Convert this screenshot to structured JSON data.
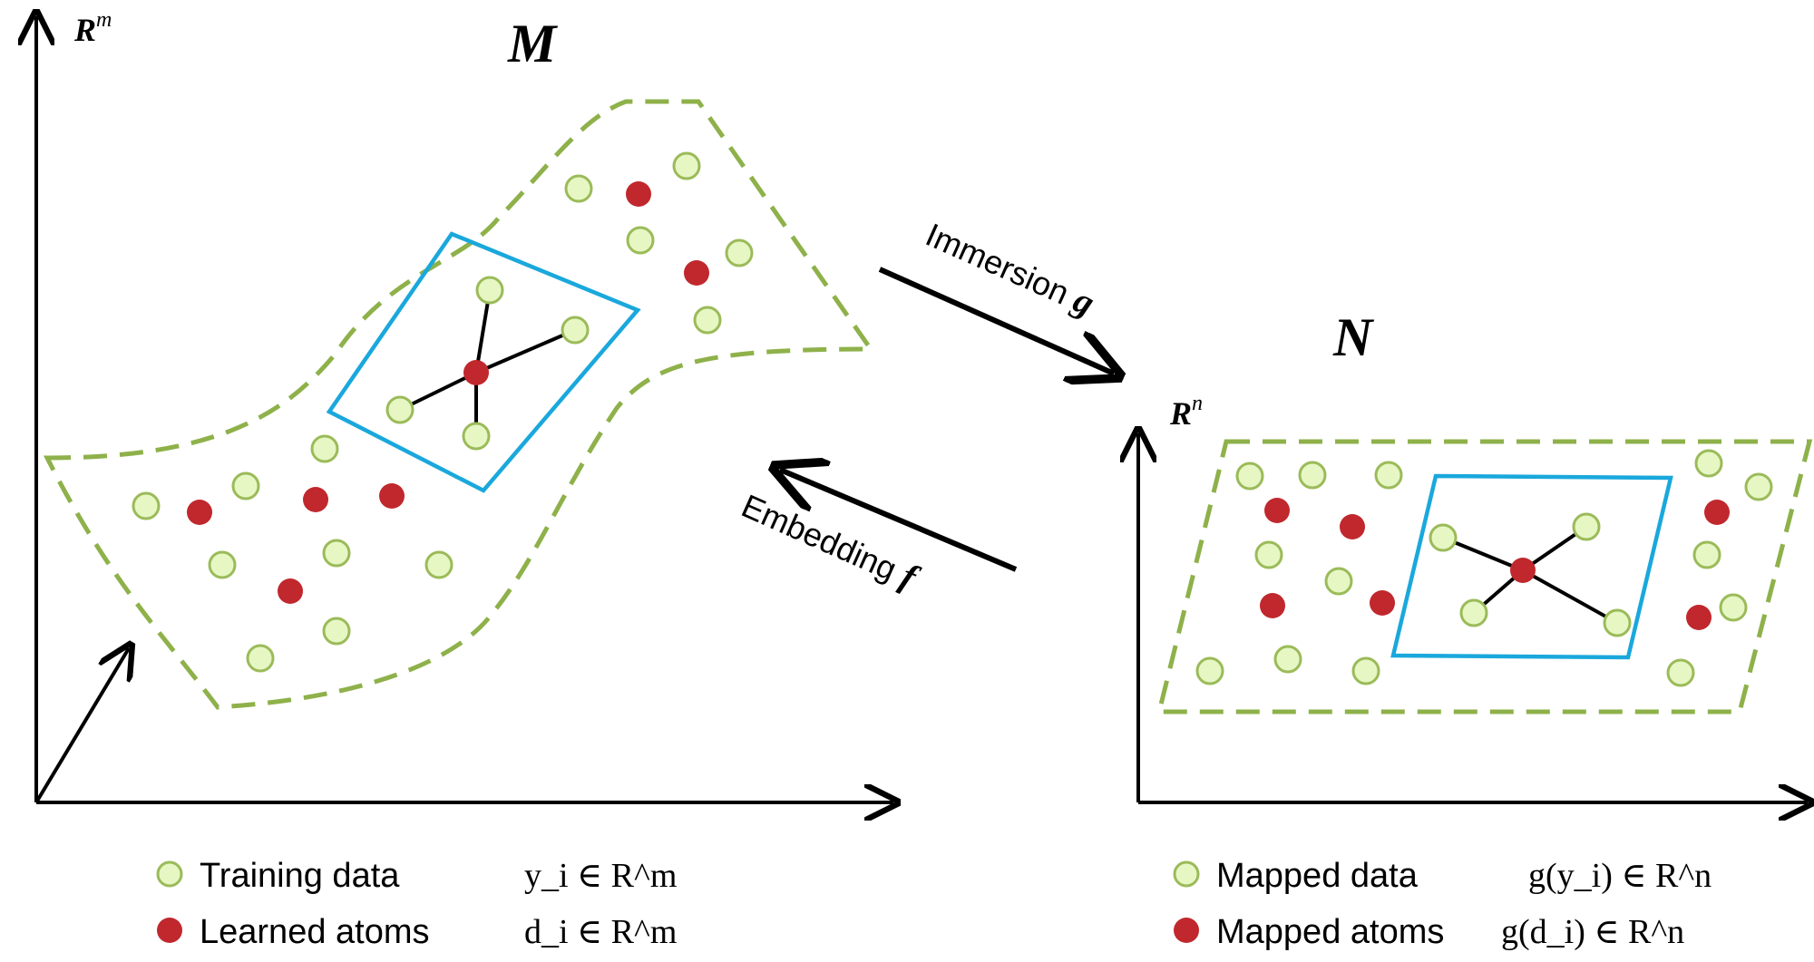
{
  "left_space": {
    "axis_label_base": "R",
    "axis_label_exp": "m",
    "manifold_label": "M"
  },
  "right_space": {
    "axis_label_base": "R",
    "axis_label_exp": "n",
    "manifold_label": "N"
  },
  "mappings": {
    "immersion_text": "Immersion ",
    "immersion_symbol": "g",
    "embedding_text": "Embedding ",
    "embedding_symbol": "f"
  },
  "legend_left": {
    "training_label": "Training data",
    "training_math": "y_i ∈ R^m",
    "atoms_label": "Learned atoms",
    "atoms_math": "d_i ∈ R^m"
  },
  "legend_right": {
    "mapped_data_label": "Mapped data",
    "mapped_data_math": "g(y_i) ∈ R^n",
    "mapped_atoms_label": "Mapped atoms",
    "mapped_atoms_math": "g(d_i) ∈ R^n"
  },
  "colors": {
    "data_fill": "#e6f7c4",
    "data_stroke": "#9bbb59",
    "atom_fill": "#c0282d",
    "manifold_stroke": "#8eb14a",
    "patch_stroke": "#1aa8dc",
    "axis": "#000000"
  }
}
